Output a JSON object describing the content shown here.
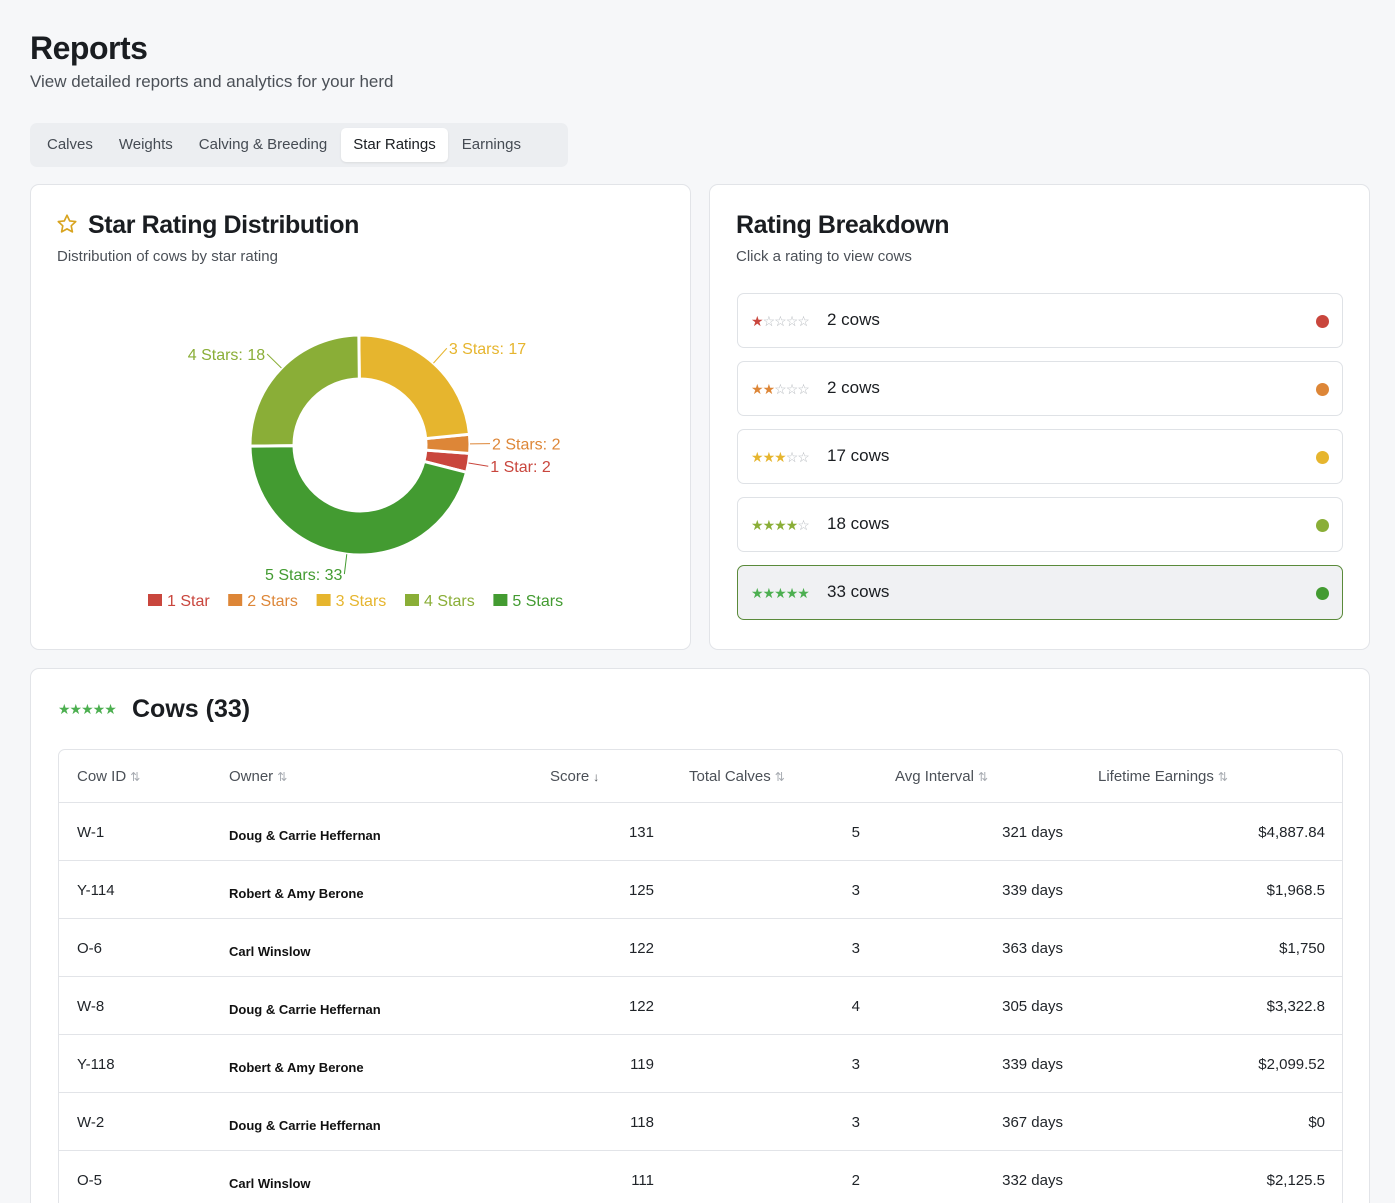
{
  "header": {
    "title": "Reports",
    "subtitle": "View detailed reports and analytics for your herd"
  },
  "tabs": [
    {
      "label": "Calves"
    },
    {
      "label": "Weights"
    },
    {
      "label": "Calving & Breeding"
    },
    {
      "label": "Star Ratings",
      "active": true
    },
    {
      "label": "Earnings"
    }
  ],
  "distribution": {
    "title": "Star Rating Distribution",
    "description": "Distribution of cows by star rating",
    "icon": "star-outline-icon"
  },
  "chart_data": {
    "type": "pie",
    "donut": true,
    "categories": [
      "1 Star",
      "2 Stars",
      "3 Stars",
      "4 Stars",
      "5 Stars"
    ],
    "values": [
      2,
      2,
      17,
      18,
      33
    ],
    "colors": [
      "#c9463d",
      "#dd8637",
      "#e6b52e",
      "#8aae37",
      "#439b31"
    ],
    "slice_labels": [
      "1 Star: 2",
      "2 Stars: 2",
      "3 Stars: 17",
      "4 Stars: 18",
      "5 Stars: 33"
    ],
    "legend_position": "bottom"
  },
  "breakdown": {
    "title": "Rating Breakdown",
    "description": "Click a rating to view cows",
    "rows": [
      {
        "stars": 1,
        "count_label": "2 cows",
        "color": "#c9463d",
        "selected": false
      },
      {
        "stars": 2,
        "count_label": "2 cows",
        "color": "#dd8637",
        "selected": false
      },
      {
        "stars": 3,
        "count_label": "17 cows",
        "color": "#e6b52e",
        "selected": false
      },
      {
        "stars": 4,
        "count_label": "18 cows",
        "color": "#8aae37",
        "selected": false
      },
      {
        "stars": 5,
        "count_label": "33 cows",
        "color": "#439b31",
        "selected": true
      }
    ]
  },
  "cows": {
    "title": "Cows (33)",
    "star_color": "#4caf50",
    "columns": [
      {
        "label": "Cow ID",
        "sort": "none"
      },
      {
        "label": "Owner",
        "sort": "none"
      },
      {
        "label": "Score",
        "sort": "desc"
      },
      {
        "label": "Total Calves",
        "sort": "none"
      },
      {
        "label": "Avg Interval",
        "sort": "none"
      },
      {
        "label": "Lifetime Earnings",
        "sort": "none"
      }
    ],
    "rows": [
      {
        "id": "W-1",
        "owner": "Doug & Carrie Heffernan",
        "score": "131",
        "calves": "5",
        "interval": "321 days",
        "earnings": "$4,887.84"
      },
      {
        "id": "Y-114",
        "owner": "Robert & Amy Berone",
        "score": "125",
        "calves": "3",
        "interval": "339 days",
        "earnings": "$1,968.5"
      },
      {
        "id": "O-6",
        "owner": "Carl Winslow",
        "score": "122",
        "calves": "3",
        "interval": "363 days",
        "earnings": "$1,750"
      },
      {
        "id": "W-8",
        "owner": "Doug & Carrie Heffernan",
        "score": "122",
        "calves": "4",
        "interval": "305 days",
        "earnings": "$3,322.8"
      },
      {
        "id": "Y-118",
        "owner": "Robert & Amy Berone",
        "score": "119",
        "calves": "3",
        "interval": "339 days",
        "earnings": "$2,099.52"
      },
      {
        "id": "W-2",
        "owner": "Doug & Carrie Heffernan",
        "score": "118",
        "calves": "3",
        "interval": "367 days",
        "earnings": "$0"
      },
      {
        "id": "O-5",
        "owner": "Carl Winslow",
        "score": "111",
        "calves": "2",
        "interval": "332 days",
        "earnings": "$2,125.5"
      }
    ]
  }
}
